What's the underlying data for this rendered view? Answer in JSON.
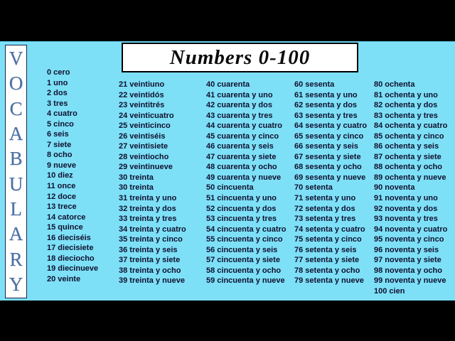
{
  "colors": {
    "bar": "#000000",
    "panel": "#7de0f7",
    "ink": "#10102e",
    "sidebar-letter": "#4a70a8",
    "box-bg": "#ffffff"
  },
  "title": {
    "text": "Numbers 0-100"
  },
  "sidebar": {
    "word": "VOCABULARY",
    "letters": [
      "V",
      "O",
      "C",
      "A",
      "B",
      "U",
      "L",
      "A",
      "R",
      "Y"
    ]
  },
  "columns": [
    {
      "name": "numbers-0-20",
      "entries": [
        "0 cero",
        "1 uno",
        "2 dos",
        "3 tres",
        "4 cuatro",
        "5 cinco",
        "6 seis",
        "7 siete",
        "8 ocho",
        "9 nueve",
        "10 diez",
        "11 once",
        "12 doce",
        "13 trece",
        "14 catorce",
        "15 quince",
        "16 dieciséis",
        "17 diecisiete",
        "18 dieciocho",
        "19 diecinueve",
        "20 veinte"
      ]
    },
    {
      "name": "numbers-21-39",
      "entries": [
        "21 veintiuno",
        "22 veintidós",
        "23 veintitrés",
        "24 veinticuatro",
        "25 veinticinco",
        "26 veintiséis",
        "27 veintisiete",
        "28 veintiocho",
        "29 veintinueve",
        "30 treinta",
        "30 treinta",
        "31 treinta y uno",
        "32 treinta y dos",
        "33 treinta y tres",
        "34 treinta y cuatro",
        "35 treinta y cinco",
        "36 treinta y seis",
        "37 treinta y siete",
        "38 treinta y ocho",
        "39 treinta y nueve"
      ]
    },
    {
      "name": "numbers-40-59",
      "entries": [
        "40 cuarenta",
        "41 cuarenta y uno",
        "42 cuarenta y dos",
        "43 cuarenta y tres",
        "44 cuarenta y cuatro",
        "45 cuarenta y cinco",
        "46 cuarenta y seis",
        "47 cuarenta y siete",
        "48 cuarenta y ocho",
        "49 cuarenta y nueve",
        "50 cincuenta",
        "51 cincuenta y uno",
        "52 cincuenta y dos",
        "53 cincuenta y tres",
        "54 cincuenta y cuatro",
        "55 cincuenta y cinco",
        "56 cincuenta y seis",
        "57 cincuenta y siete",
        "58 cincuenta y ocho",
        "59 cincuenta y nueve"
      ]
    },
    {
      "name": "numbers-60-79",
      "entries": [
        "60 sesenta",
        "61 sesenta y uno",
        "62 sesenta y dos",
        "63 sesenta y tres",
        "64 sesenta y cuatro",
        "65 sesenta y cinco",
        "66 sesenta y seis",
        "67 sesenta y siete",
        "68 sesenta y ocho",
        "69 sesenta y nueve",
        "70 setenta",
        "71 setenta y uno",
        "72 setenta y dos",
        "73 setenta y tres",
        "74 setenta y cuatro",
        "75 setenta y cinco",
        "76 setenta y seis",
        "77 setenta y siete",
        "78 setenta y ocho",
        "79 setenta y nueve"
      ]
    },
    {
      "name": "numbers-80-100",
      "entries": [
        "80 ochenta",
        "81 ochenta y uno",
        "82 ochenta y dos",
        "83 ochenta y tres",
        "84 ochenta y cuatro",
        "85 ochenta y cinco",
        "86 ochenta y seis",
        "87 ochenta y siete",
        "88 ochenta y ocho",
        "89 ochenta y nueve",
        "90 noventa",
        "91 noventa y uno",
        "92 noventa y dos",
        "93 noventa y tres",
        "94 noventa y cuatro",
        "95 noventa y cinco",
        "96 noventa y seis",
        "97 noventa y siete",
        "98 noventa y ocho",
        "99 noventa y nueve",
        "100 cien"
      ]
    }
  ]
}
